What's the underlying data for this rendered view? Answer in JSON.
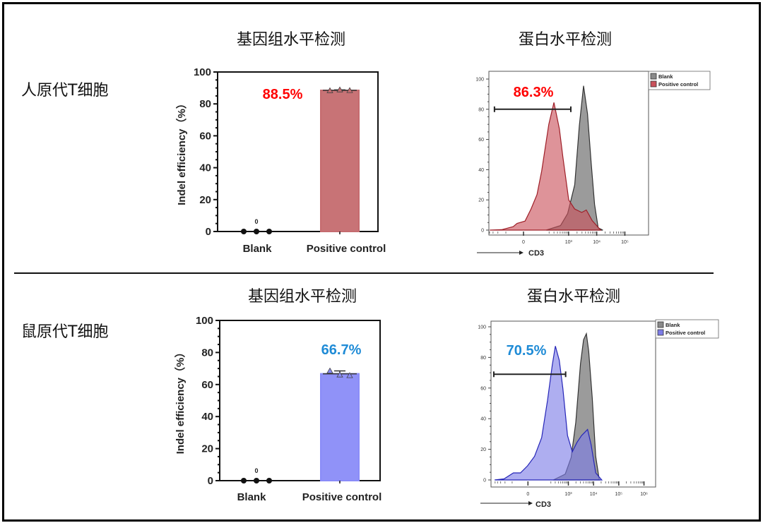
{
  "figure": {
    "rows": [
      {
        "label": "人原代T细胞",
        "genome_title": "基因组水平检测",
        "protein_title": "蛋白水平检测"
      },
      {
        "label": "鼠原代T细胞",
        "genome_title": "基因组水平检测",
        "protein_title": "蛋白水平检测"
      }
    ]
  },
  "chart_data": [
    {
      "type": "bar",
      "title": "基因组水平检测",
      "ylabel": "Indel efficiency（%）",
      "ylim": [
        0,
        100
      ],
      "yticks": [
        "0",
        "20",
        "40",
        "60",
        "80",
        "100"
      ],
      "categories": [
        "Blank",
        "Positive control"
      ],
      "values": [
        0,
        88.5
      ],
      "points": [
        [
          0,
          0,
          0
        ],
        [
          88.3,
          88.8,
          88.4
        ]
      ],
      "value_labels": [
        "0",
        "88.5%"
      ],
      "bar_color": "#c56b6f",
      "label_color": "#ff0000"
    },
    {
      "type": "area",
      "title": "蛋白水平检测",
      "xlabel": "CD3",
      "x_scale": "biexponential",
      "xticks": [
        "0",
        "10³",
        "10⁴",
        "10⁵"
      ],
      "xtick_values": [
        0,
        1000,
        10000,
        100000
      ],
      "yticks": [
        "0",
        "20",
        "40",
        "60",
        "80",
        "100"
      ],
      "ylim": [
        0,
        100
      ],
      "legend": "top-right outside",
      "gate": {
        "label": "86.3%",
        "x": [
          -267,
          1200
        ],
        "y": 80,
        "label_color": "#ff0000"
      },
      "series": [
        {
          "name": "Blank",
          "color": "#8a8a8a",
          "points": [
            [
              158,
              0
            ],
            [
              515,
              3
            ],
            [
              925,
              11
            ],
            [
              1650,
              30
            ],
            [
              2400,
              69
            ],
            [
              3400,
              95.5
            ],
            [
              4700,
              77
            ],
            [
              6300,
              45
            ],
            [
              8400,
              17
            ],
            [
              11250,
              1.5
            ],
            [
              16450,
              0
            ]
          ]
        },
        {
          "name": "Positive control",
          "color": "#c9505a",
          "points": [
            [
              -394,
              0
            ],
            [
              -145,
              0.3
            ],
            [
              -47,
              2.3
            ],
            [
              -28,
              4.4
            ],
            [
              6.5,
              6
            ],
            [
              33,
              14
            ],
            [
              67,
              23.5
            ],
            [
              105,
              39
            ],
            [
              195,
              70
            ],
            [
              300,
              84.5
            ],
            [
              470,
              67
            ],
            [
              626,
              48.5
            ],
            [
              1010,
              20
            ],
            [
              1635,
              14
            ],
            [
              2920,
              11.7
            ],
            [
              4260,
              13.3
            ],
            [
              6890,
              6.3
            ],
            [
              13760,
              0
            ]
          ]
        }
      ]
    },
    {
      "type": "bar",
      "title": "基因组水平检测",
      "ylabel": "Indel efficiency（%）",
      "ylim": [
        0,
        100
      ],
      "yticks": [
        "0",
        "20",
        "40",
        "60",
        "80",
        "100"
      ],
      "categories": [
        "Blank",
        "Positive control"
      ],
      "values": [
        0,
        66.7
      ],
      "points": [
        [
          0,
          0,
          0
        ],
        [
          68.5,
          66.0,
          65.6
        ]
      ],
      "value_labels": [
        "0",
        "66.7%"
      ],
      "bar_color": "#8a8cf8",
      "label_color": "#1f8bd6"
    },
    {
      "type": "area",
      "title": "蛋白水平检测",
      "xlabel": "CD3",
      "x_scale": "biexponential",
      "xticks": [
        "0",
        "10³",
        "10⁴",
        "10⁵",
        "10⁶"
      ],
      "xtick_values": [
        0,
        1000,
        10000,
        100000,
        1000000
      ],
      "yticks": [
        "0",
        "20",
        "40",
        "60",
        "80",
        "100"
      ],
      "ylim": [
        0,
        100
      ],
      "legend": "top-right outside",
      "gate": {
        "label": "70.5%",
        "x": [
          -565,
          780
        ],
        "y": 69,
        "label_color": "#1f8bd6"
      },
      "series": [
        {
          "name": "Blank",
          "color": "#8a8a8a",
          "points": [
            [
              252,
              0
            ],
            [
              750,
              3.8
            ],
            [
              1285,
              14.6
            ],
            [
              1975,
              37.6
            ],
            [
              3040,
              76
            ],
            [
              4000,
              91.5
            ],
            [
              5200,
              95.5
            ],
            [
              6400,
              84
            ],
            [
              8850,
              53.7
            ],
            [
              12200,
              15.4
            ],
            [
              16950,
              0
            ]
          ]
        },
        {
          "name": "Positive control",
          "color": "#7c7ce6",
          "points": [
            [
              -525,
              0
            ],
            [
              -220,
              0.7
            ],
            [
              -88,
              4.6
            ],
            [
              -37,
              4.6
            ],
            [
              -2,
              9.2
            ],
            [
              32,
              15.4
            ],
            [
              80,
              27.6
            ],
            [
              145,
              52
            ],
            [
              228,
              75
            ],
            [
              303,
              87.4
            ],
            [
              435,
              78.2
            ],
            [
              605,
              59.8
            ],
            [
              925,
              29
            ],
            [
              1435,
              18.4
            ],
            [
              2200,
              24.5
            ],
            [
              3350,
              29
            ],
            [
              5800,
              33
            ],
            [
              8000,
              23
            ],
            [
              12200,
              4.6
            ],
            [
              21150,
              0
            ]
          ]
        }
      ]
    }
  ]
}
